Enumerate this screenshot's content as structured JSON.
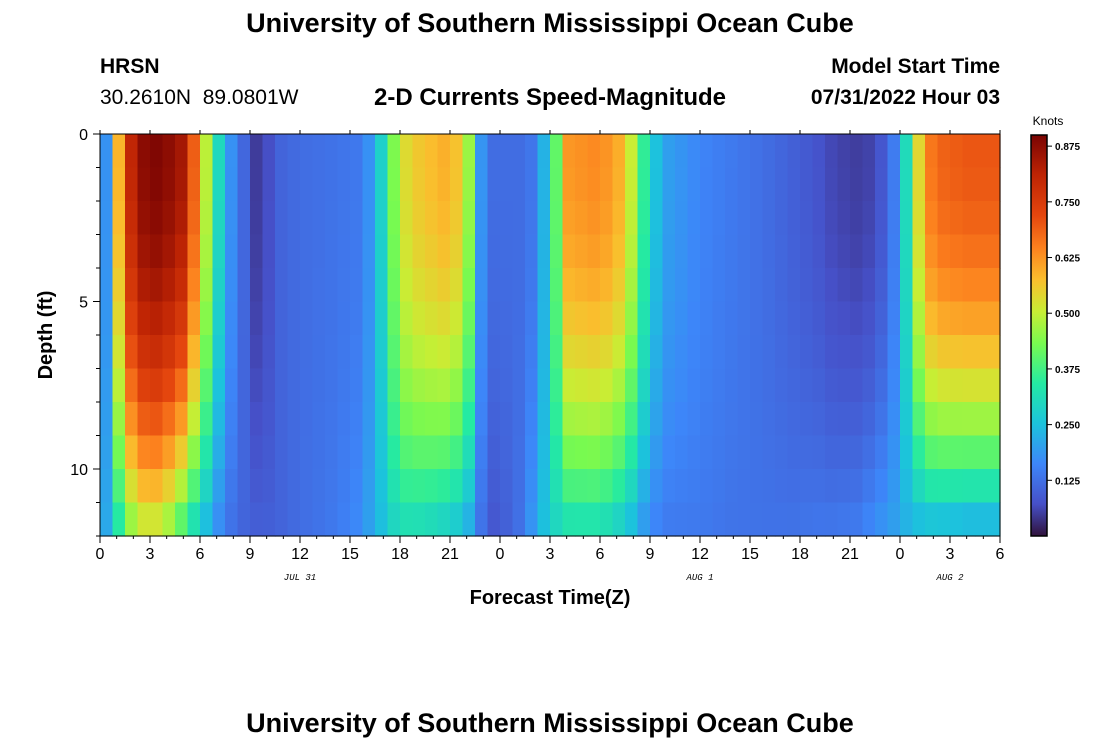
{
  "header": {
    "title": "University of Southern Mississippi Ocean Cube",
    "station": "HRSN",
    "coords": "30.2610N  89.0801W",
    "subtitle": "2-D Currents Speed-Magnitude",
    "start_label": "Model Start Time",
    "start_value": "07/31/2022 Hour 03"
  },
  "footer": {
    "title": "University of Southern Mississippi Ocean Cube"
  },
  "chart_data": {
    "type": "heatmap",
    "xlabel": "Forecast Time(Z)",
    "ylabel": "Depth (ft)",
    "x_ticks": [
      "0",
      "3",
      "6",
      "9",
      "12",
      "15",
      "18",
      "21",
      "0",
      "3",
      "6",
      "9",
      "12",
      "15",
      "18",
      "21",
      "0",
      "3",
      "6"
    ],
    "x_range_hours": [
      0,
      54
    ],
    "date_labels": [
      {
        "label": "JUL 31",
        "hour": 12
      },
      {
        "label": "AUG 1",
        "hour": 36
      },
      {
        "label": "AUG 2",
        "hour": 51
      }
    ],
    "y_ticks": [
      "0",
      "5",
      "10"
    ],
    "y_range": [
      0,
      12
    ],
    "y_reversed": true,
    "colorbar": {
      "label": "Knots",
      "ticks": [
        "0.125",
        "0.250",
        "0.375",
        "0.500",
        "0.625",
        "0.750",
        "0.875"
      ],
      "range": [
        0.0,
        0.9
      ]
    },
    "speed_profile_hours": [
      0,
      0.5,
      1,
      2,
      3,
      4,
      5,
      6,
      6.7,
      7.3,
      8,
      9,
      9.6,
      10.5,
      12,
      14,
      15.5,
      16.5,
      17.5,
      18.5,
      20,
      21,
      22,
      22.7,
      23.5,
      24.5,
      25.5,
      26,
      27,
      28,
      30,
      31.5,
      32.3,
      33,
      34,
      36,
      38,
      40,
      41.5,
      43,
      44,
      45.5,
      46.5,
      47.5,
      48.3,
      49,
      50,
      52,
      54
    ],
    "speed_profile_surface": [
      0.18,
      0.18,
      0.55,
      0.84,
      0.9,
      0.88,
      0.84,
      0.6,
      0.4,
      0.26,
      0.16,
      0.08,
      0.03,
      0.1,
      0.12,
      0.13,
      0.14,
      0.2,
      0.42,
      0.55,
      0.58,
      0.6,
      0.52,
      0.2,
      0.12,
      0.12,
      0.12,
      0.14,
      0.28,
      0.62,
      0.64,
      0.58,
      0.42,
      0.28,
      0.2,
      0.16,
      0.14,
      0.12,
      0.1,
      0.08,
      0.06,
      0.05,
      0.06,
      0.12,
      0.28,
      0.52,
      0.68,
      0.7,
      0.7
    ],
    "speed_profile_bottom": [
      0.2,
      0.22,
      0.3,
      0.45,
      0.5,
      0.45,
      0.35,
      0.25,
      0.2,
      0.15,
      0.12,
      0.1,
      0.1,
      0.1,
      0.12,
      0.14,
      0.17,
      0.22,
      0.28,
      0.3,
      0.28,
      0.26,
      0.22,
      0.14,
      0.08,
      0.1,
      0.14,
      0.2,
      0.28,
      0.3,
      0.3,
      0.25,
      0.2,
      0.16,
      0.14,
      0.14,
      0.13,
      0.13,
      0.13,
      0.14,
      0.14,
      0.15,
      0.18,
      0.2,
      0.22,
      0.22,
      0.22,
      0.2,
      0.2
    ]
  }
}
